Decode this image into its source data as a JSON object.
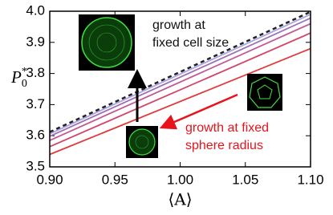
{
  "chart_data": {
    "type": "line",
    "x": [
      0.9,
      1.1
    ],
    "series": [
      {
        "color": "#e03a3a",
        "values": [
          3.54,
          3.88
        ]
      },
      {
        "color": "#d2456a",
        "values": [
          3.565,
          3.93
        ]
      },
      {
        "color": "#c05a96",
        "values": [
          3.585,
          3.96
        ]
      },
      {
        "color": "#9d70b8",
        "values": [
          3.598,
          3.978
        ]
      },
      {
        "color": "#a9a6e0",
        "values": [
          3.606,
          3.99
        ]
      },
      {
        "color": "#222222",
        "dashed": true,
        "values": [
          3.612,
          3.998
        ]
      }
    ],
    "xlim": [
      0.9,
      1.1
    ],
    "xticks": [
      {
        "value": 0.9,
        "label": "0.90"
      },
      0.95,
      {
        "value": 1.0,
        "label": "1.00"
      },
      1.05,
      {
        "value": 1.1,
        "label": "1.10"
      }
    ],
    "ylim": [
      3.5,
      4.0
    ],
    "yticks": [
      3.5,
      3.6,
      3.7,
      3.8,
      3.9,
      {
        "value": 4.0,
        "label": "4.0"
      }
    ],
    "x_label": "⟨A⟩",
    "y_label": {
      "base": "P",
      "sub": "0",
      "sup": "*"
    },
    "annotations": [
      {
        "lines": [
          "growth at",
          "fixed cell size"
        ],
        "color": "#111111"
      },
      {
        "lines": [
          "growth at fixed",
          "sphere radius"
        ],
        "color": "#e8141c"
      }
    ]
  }
}
